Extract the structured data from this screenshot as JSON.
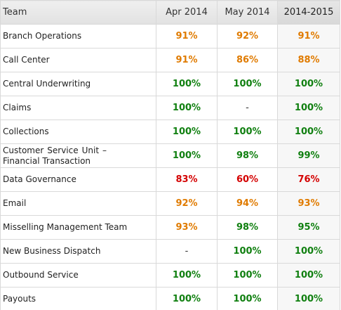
{
  "colors": {
    "green": "#118011",
    "orange": "#e07b00",
    "red": "#d40000",
    "dash": "#333333"
  },
  "table": {
    "headers": [
      "Team",
      "Apr 2014",
      "May 2014",
      "2014-2015"
    ],
    "rows": [
      {
        "team": "Branch Operations",
        "apr": "91%",
        "may": "92%",
        "ytd": "91%",
        "colors": [
          "orange",
          "orange",
          "orange"
        ]
      },
      {
        "team": "Call Center",
        "apr": "91%",
        "may": "86%",
        "ytd": "88%",
        "colors": [
          "orange",
          "orange",
          "orange"
        ]
      },
      {
        "team": "Central Underwriting",
        "apr": "100%",
        "may": "100%",
        "ytd": "100%",
        "colors": [
          "green",
          "green",
          "green"
        ]
      },
      {
        "team": "Claims",
        "apr": "100%",
        "may": "-",
        "ytd": "100%",
        "colors": [
          "green",
          "dash",
          "green"
        ]
      },
      {
        "team": "Collections",
        "apr": "100%",
        "may": "100%",
        "ytd": "100%",
        "colors": [
          "green",
          "green",
          "green"
        ]
      },
      {
        "team_line1": "Customer Service Unit –",
        "team_line2": "Financial Transaction",
        "apr": "100%",
        "may": "98%",
        "ytd": "99%",
        "colors": [
          "green",
          "green",
          "green"
        ]
      },
      {
        "team": "Data Governance",
        "apr": "83%",
        "may": "60%",
        "ytd": "76%",
        "colors": [
          "red",
          "red",
          "red"
        ]
      },
      {
        "team": "Email",
        "apr": "92%",
        "may": "94%",
        "ytd": "93%",
        "colors": [
          "orange",
          "orange",
          "orange"
        ]
      },
      {
        "team": "Misselling Management Team",
        "apr": "93%",
        "may": "98%",
        "ytd": "95%",
        "colors": [
          "orange",
          "green",
          "green"
        ]
      },
      {
        "team": "New Business Dispatch",
        "apr": "-",
        "may": "100%",
        "ytd": "100%",
        "colors": [
          "dash",
          "green",
          "green"
        ]
      },
      {
        "team": "Outbound Service",
        "apr": "100%",
        "may": "100%",
        "ytd": "100%",
        "colors": [
          "green",
          "green",
          "green"
        ]
      },
      {
        "team": "Payouts",
        "apr": "100%",
        "may": "100%",
        "ytd": "100%",
        "colors": [
          "green",
          "green",
          "green"
        ]
      }
    ]
  }
}
